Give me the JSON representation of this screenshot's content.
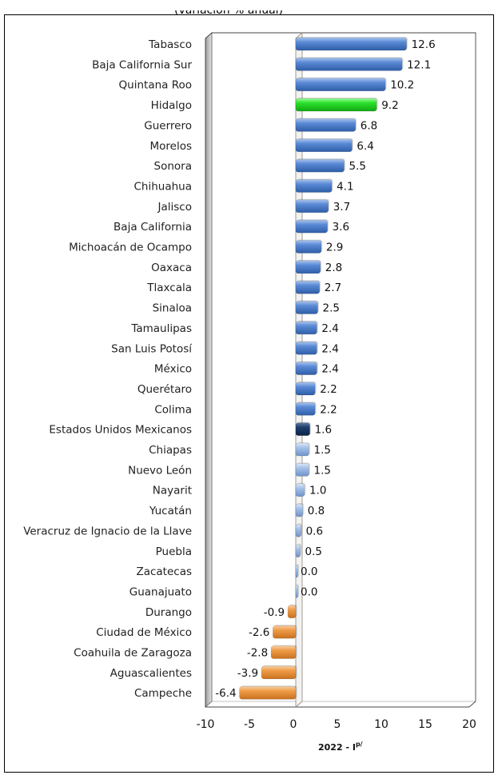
{
  "header": {
    "clipped_text": "(variación % anual)"
  },
  "chart_data": {
    "type": "bar",
    "orientation": "horizontal",
    "title": "",
    "xlabel": "2022 - I",
    "xlabel_superscript": "p/",
    "ylabel": "",
    "xlim": [
      -10,
      20
    ],
    "x_ticks": [
      -10,
      -5,
      0,
      5,
      10,
      15,
      20
    ],
    "grid": false,
    "colors": {
      "positive": "#4a7ccc",
      "highlight": "#22dd22",
      "national": "#1b3a63",
      "low_positive": "#9bbbe4",
      "negative": "#ee9a47"
    },
    "categories": [
      "Tabasco",
      "Baja California Sur",
      "Quintana Roo",
      "Hidalgo",
      "Guerrero",
      "Morelos",
      "Sonora",
      "Chihuahua",
      "Jalisco",
      "Baja California",
      "Michoacán de Ocampo",
      "Oaxaca",
      "Tlaxcala",
      "Sinaloa",
      "Tamaulipas",
      "San Luis Potosí",
      "México",
      "Querétaro",
      "Colima",
      "Estados Unidos Mexicanos",
      "Chiapas",
      "Nuevo León",
      "Nayarit",
      "Yucatán",
      "Veracruz de Ignacio de la Llave",
      "Puebla",
      "Zacatecas",
      "Guanajuato",
      "Durango",
      "Ciudad de México",
      "Coahuila de Zaragoza",
      "Aguascalientes",
      "Campeche"
    ],
    "values": [
      12.6,
      12.1,
      10.2,
      9.2,
      6.8,
      6.4,
      5.5,
      4.1,
      3.7,
      3.6,
      2.9,
      2.8,
      2.7,
      2.5,
      2.4,
      2.4,
      2.4,
      2.2,
      2.2,
      1.6,
      1.5,
      1.5,
      1.0,
      0.8,
      0.6,
      0.5,
      0.0,
      0.0,
      -0.9,
      -2.6,
      -2.8,
      -3.9,
      -6.4
    ],
    "value_labels": [
      "12.6",
      "12.1",
      "10.2",
      "9.2",
      "6.8",
      "6.4",
      "5.5",
      "4.1",
      "3.7",
      "3.6",
      "2.9",
      "2.8",
      "2.7",
      "2.5",
      "2.4",
      "2.4",
      "2.4",
      "2.2",
      "2.2",
      "1.6",
      "1.5",
      "1.5",
      "1.0",
      "0.8",
      "0.6",
      "0.5",
      "0.0",
      "0.0",
      "-0.9",
      "-2.6",
      "-2.8",
      "-3.9",
      "-6.4"
    ],
    "bar_styles": [
      "positive",
      "positive",
      "positive",
      "highlight",
      "positive",
      "positive",
      "positive",
      "positive",
      "positive",
      "positive",
      "positive",
      "positive",
      "positive",
      "positive",
      "positive",
      "positive",
      "positive",
      "positive",
      "positive",
      "national",
      "low_positive",
      "low_positive",
      "low_positive",
      "low_positive",
      "low_positive",
      "low_positive",
      "low_positive",
      "low_positive",
      "negative",
      "negative",
      "negative",
      "negative",
      "negative"
    ]
  }
}
